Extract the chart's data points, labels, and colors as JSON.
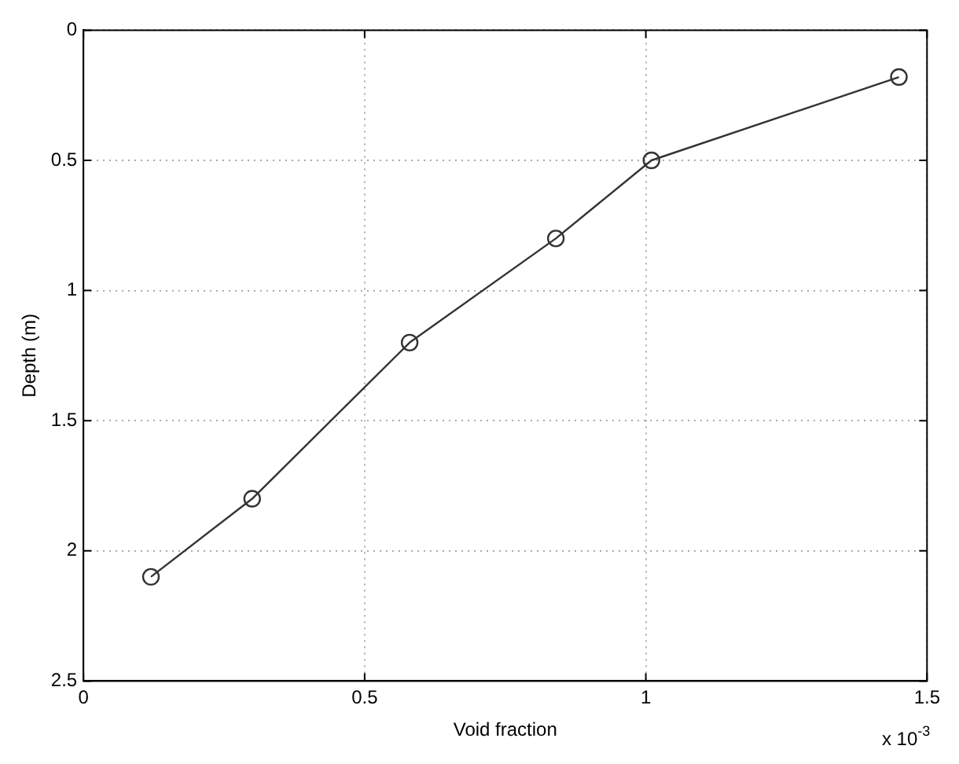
{
  "chart_data": {
    "type": "line",
    "xlabel": "Void fraction",
    "ylabel": "Depth (m)",
    "x": [
      0.12,
      0.3,
      0.58,
      0.84,
      1.01,
      1.45
    ],
    "values": [
      2.1,
      1.8,
      1.2,
      0.8,
      0.5,
      0.18
    ],
    "color": "#333333",
    "marker": "circle",
    "line_style": "solid",
    "grid": true,
    "xlim": [
      0,
      1.5
    ],
    "xticks": [
      0,
      0.5,
      1,
      1.5
    ],
    "ylim": [
      2.5,
      0
    ],
    "yticks": [
      0,
      0.5,
      1,
      1.5,
      2,
      2.5
    ],
    "annotations": [
      "x 10$^{-3}$"
    ]
  }
}
